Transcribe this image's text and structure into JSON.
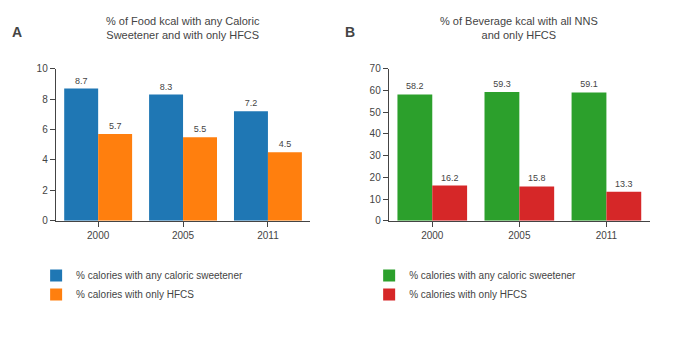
{
  "chart_data": [
    {
      "type": "bar",
      "panel_label": "A",
      "title": "% of Food kcal with any Caloric\nSweetener and with only HFCS",
      "categories": [
        "2000",
        "2005",
        "2011"
      ],
      "series": [
        {
          "name": "% calories with any caloric sweetener",
          "values": [
            8.7,
            8.3,
            7.2
          ]
        },
        {
          "name": "% calories with only HFCS",
          "values": [
            5.7,
            5.5,
            4.5
          ]
        }
      ],
      "ylim": [
        0,
        10
      ],
      "yticks": [
        0,
        2,
        4,
        6,
        8,
        10
      ],
      "grid": false,
      "legend": "bottom",
      "data_labels": true
    },
    {
      "type": "bar",
      "panel_label": "B",
      "title": "% of Beverage kcal with all NNS\nand only HFCS",
      "categories": [
        "2000",
        "2005",
        "2011"
      ],
      "series": [
        {
          "name": "% calories with any caloric sweetener",
          "values": [
            58.2,
            59.3,
            59.1
          ]
        },
        {
          "name": "% calories with only HFCS",
          "values": [
            16.2,
            15.8,
            13.3
          ]
        }
      ],
      "ylim": [
        0,
        70
      ],
      "yticks": [
        0,
        10,
        20,
        30,
        40,
        50,
        60,
        70
      ],
      "grid": false,
      "legend": "bottom",
      "data_labels": true
    }
  ]
}
